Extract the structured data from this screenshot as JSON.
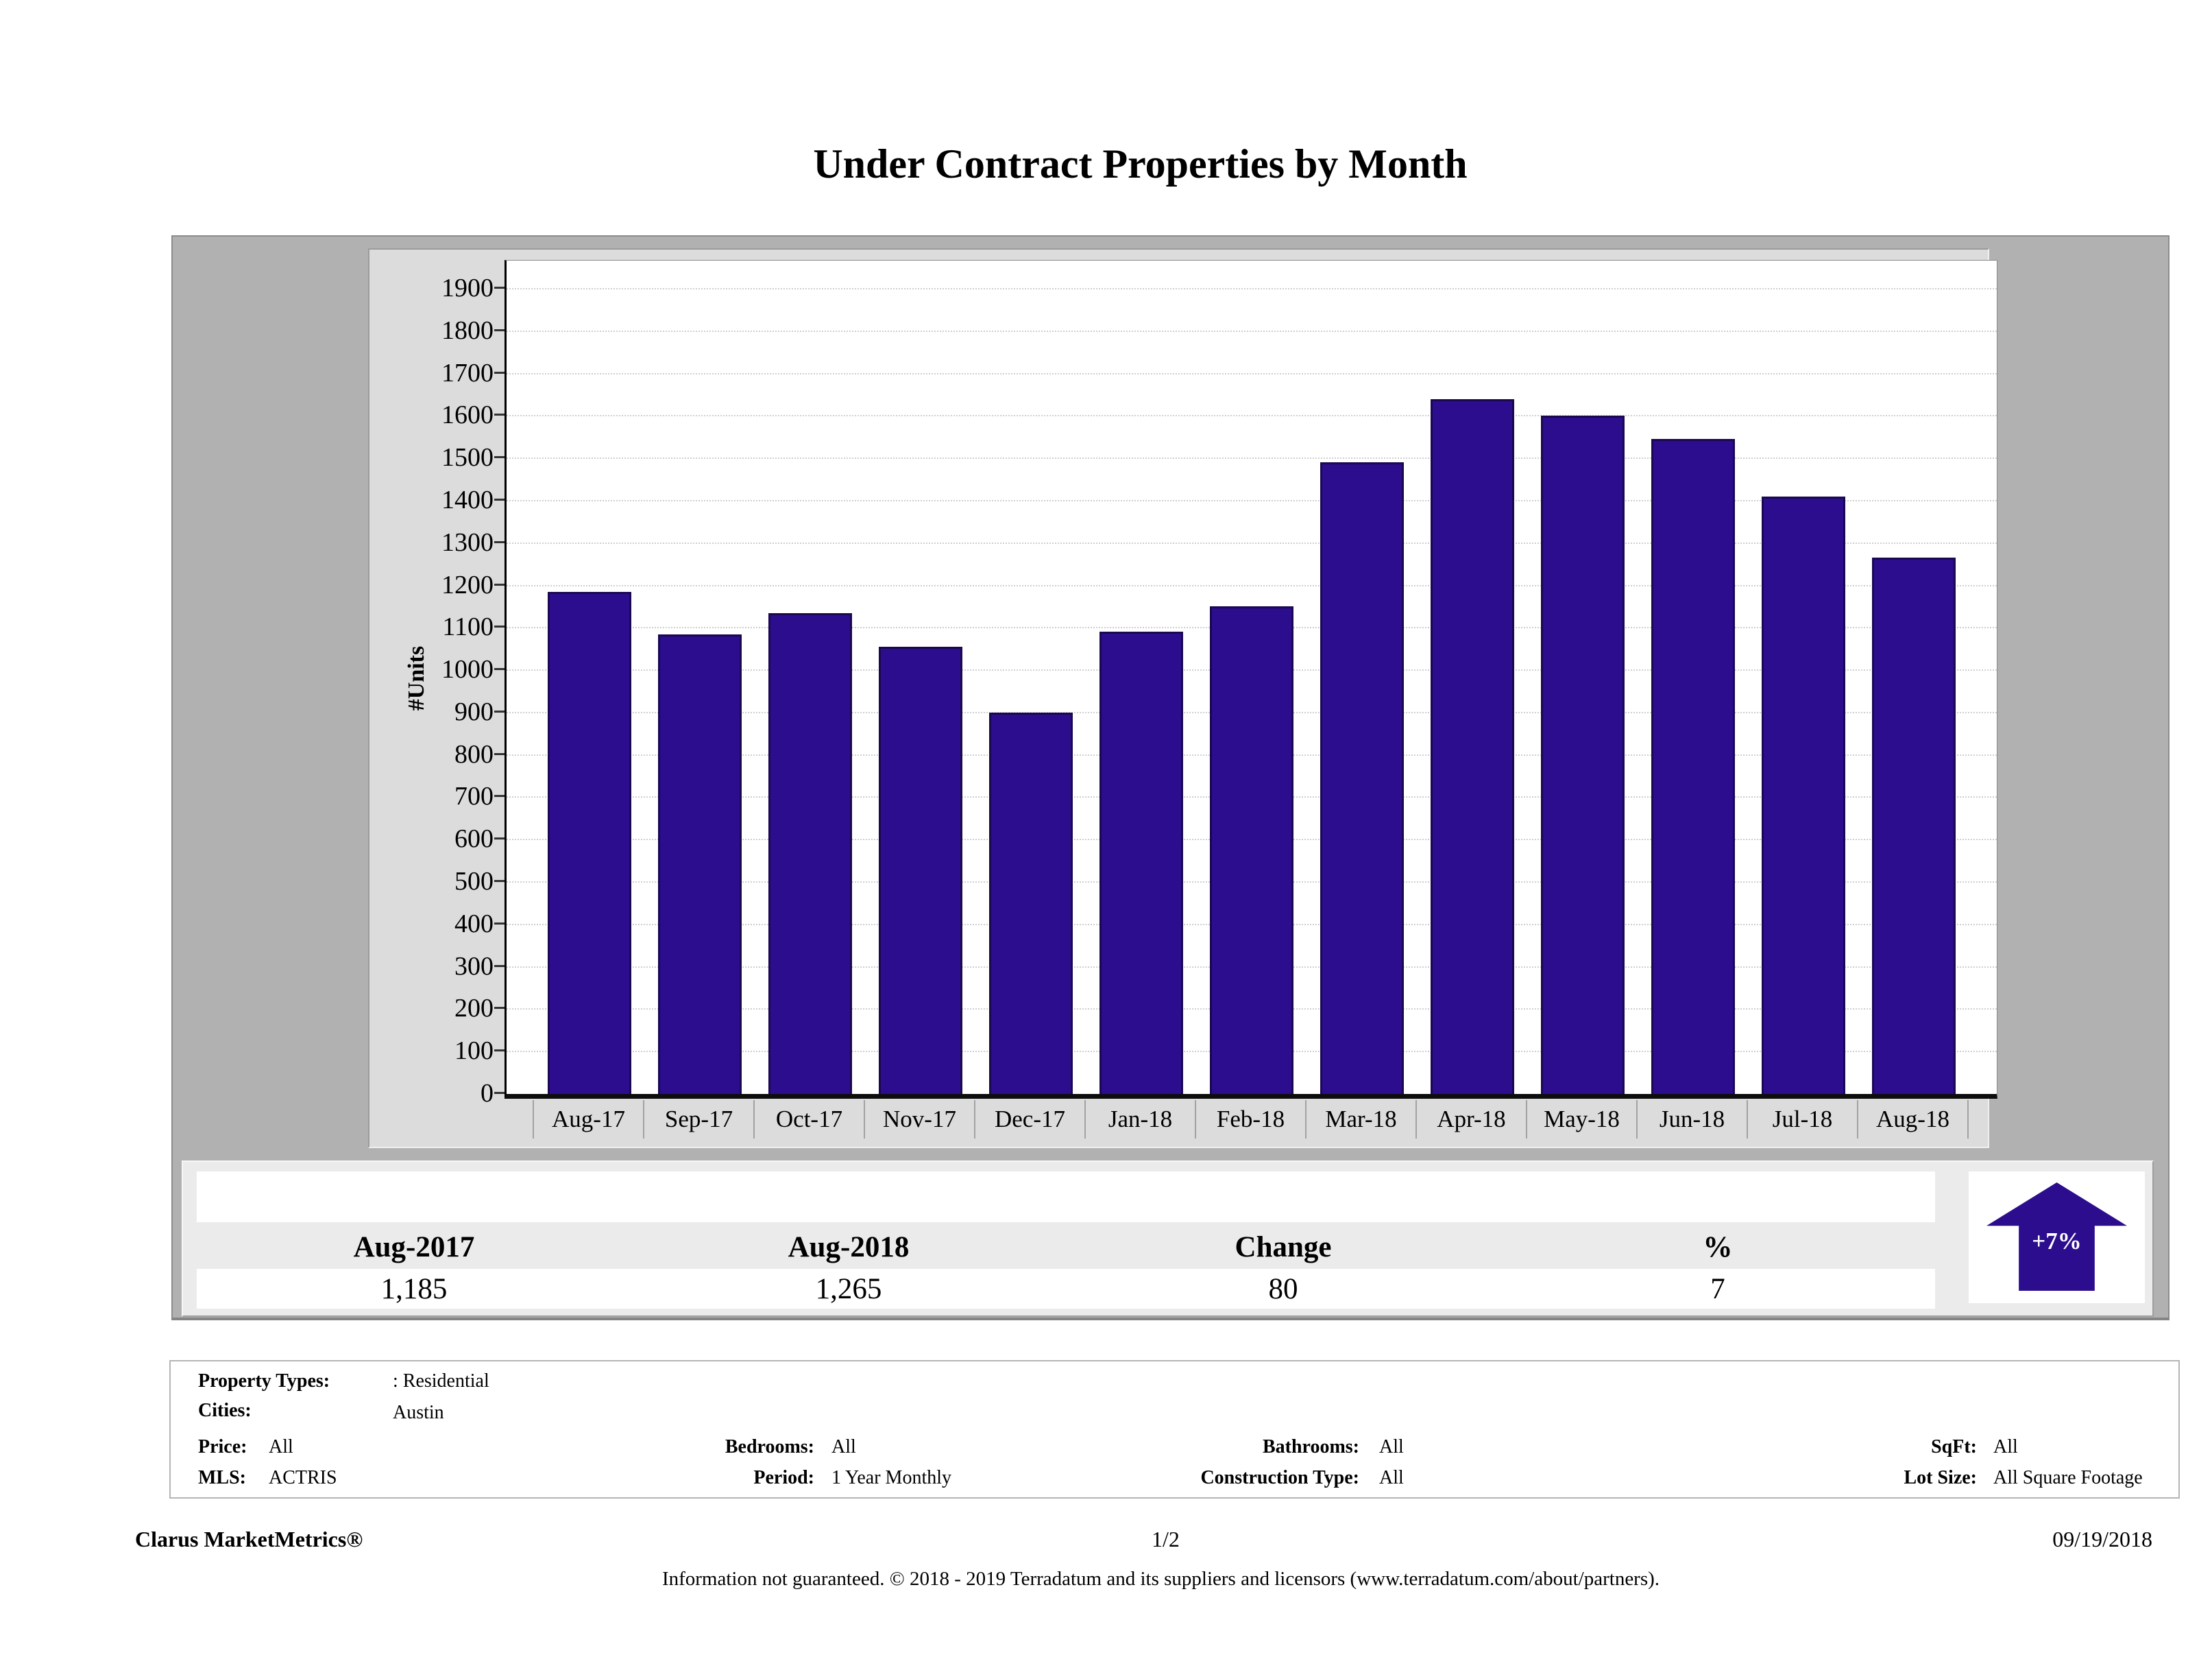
{
  "title": "Under Contract Properties by Month",
  "chart_data": {
    "type": "bar",
    "title": "Under Contract Properties by Month",
    "xlabel": "",
    "ylabel": "#Units",
    "categories": [
      "Aug-17",
      "Sep-17",
      "Oct-17",
      "Nov-17",
      "Dec-17",
      "Jan-18",
      "Feb-18",
      "Mar-18",
      "Apr-18",
      "May-18",
      "Jun-18",
      "Jul-18",
      "Aug-18"
    ],
    "values": [
      1185,
      1085,
      1135,
      1055,
      900,
      1090,
      1150,
      1490,
      1640,
      1600,
      1545,
      1410,
      1265
    ],
    "ylim": [
      0,
      1900
    ],
    "ytick_step": 100,
    "y_ticks": [
      0,
      100,
      200,
      300,
      400,
      500,
      600,
      700,
      800,
      900,
      1000,
      1100,
      1200,
      1300,
      1400,
      1500,
      1600,
      1700,
      1800,
      1900
    ],
    "grid": "horizontal-dotted",
    "legend": "none",
    "bar_color": "#2b0d8e",
    "bar_border_color": "#1a0850"
  },
  "summary_table": {
    "headers": [
      "Aug-2017",
      "Aug-2018",
      "Change",
      "%"
    ],
    "values": [
      "1,185",
      "1,265",
      "80",
      "7"
    ]
  },
  "change_badge": {
    "label": "+7%",
    "direction": "up",
    "color": "#2b0d8e"
  },
  "filters": {
    "property_types_label": "Property Types:",
    "property_types_value": ": Residential",
    "cities_label": "Cities:",
    "cities_value": "Austin",
    "price_label": "Price:",
    "price_value": "All",
    "mls_label": "MLS:",
    "mls_value": "ACTRIS",
    "bedrooms_label": "Bedrooms:",
    "bedrooms_value": "All",
    "period_label": "Period:",
    "period_value": "1 Year Monthly",
    "bathrooms_label": "Bathrooms:",
    "bathrooms_value": "All",
    "construction_label": "Construction Type:",
    "construction_value": "All",
    "sqft_label": "SqFt:",
    "sqft_value": "All",
    "lot_label": "Lot Size:",
    "lot_value": "All Square Footage"
  },
  "footer": {
    "brand": "Clarus MarketMetrics®",
    "page": "1/2",
    "date": "09/19/2018",
    "disclaimer": "Information not guaranteed. © 2018 - 2019 Terradatum and its suppliers and licensors (www.terradatum.com/about/partners)."
  }
}
